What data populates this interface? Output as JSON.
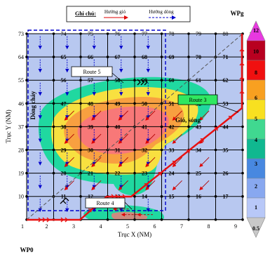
{
  "legend": {
    "title": "Ghi chú:",
    "wind_label": "Hướng gió",
    "current_label": "Hướng dòng",
    "colors": {
      "wind_arrow": "#e00000",
      "current_arrow": "#0000cc"
    }
  },
  "labels": {
    "wp_start": "WP0",
    "wp_goal": "WPg",
    "region_current": "Dòng chảy",
    "region_wind_wave": "Gió, sóng",
    "route3": "Route 3",
    "route4": "Route 4",
    "route5": "Route 5"
  },
  "axes": {
    "xlabel": "Trục X (NM)",
    "ylabel": "Trục Y (NM)",
    "x_ticks": [
      "1",
      "2",
      "3",
      "4",
      "5",
      "6",
      "7",
      "8",
      "9"
    ],
    "y_ticks": [
      "1",
      "10",
      "19",
      "28",
      "37",
      "46",
      "55",
      "64",
      "73"
    ]
  },
  "grid": {
    "nodes": [
      [
        "73",
        "74",
        "75",
        "76",
        "77",
        "78",
        "79",
        "80",
        "81"
      ],
      [
        "64",
        "65",
        "66",
        "67",
        "68",
        "69",
        "70",
        "71",
        "72"
      ],
      [
        "55",
        "56",
        "57",
        "58",
        "59",
        "60",
        "61",
        "62",
        "63"
      ],
      [
        "46",
        "47",
        "48",
        "49",
        "50",
        "51",
        "52",
        "53",
        "54"
      ],
      [
        "37",
        "38",
        "39",
        "40",
        "41",
        "42",
        "43",
        "44",
        "45"
      ],
      [
        "28",
        "29",
        "30",
        "31",
        "32",
        "33",
        "34",
        "35",
        "36"
      ],
      [
        "19",
        "20",
        "21",
        "22",
        "23",
        "24",
        "25",
        "26",
        "27"
      ],
      [
        "10",
        "11",
        "12",
        "13",
        "14",
        "15",
        "16",
        "17",
        "18"
      ],
      [
        "1",
        "2",
        "3",
        "4",
        "5",
        "6",
        "7",
        "8",
        "9"
      ]
    ]
  },
  "colorbar": {
    "values": [
      "12",
      "10",
      "8",
      "6",
      "5",
      "4",
      "3",
      "2",
      "1",
      "0.5"
    ],
    "colors": [
      "#e838e0",
      "#b80020",
      "#f01010",
      "#f8a020",
      "#f8e020",
      "#40d890",
      "#10b890",
      "#4888e0",
      "#88a8f0",
      "#b8c8f8",
      "#c8c8c8"
    ]
  },
  "colors": {
    "background": "#b8c8f0",
    "route_red": "#e81010",
    "route_black": "#000000",
    "contour_teal": "#20d8a0",
    "contour_yellow": "#f8e040",
    "contour_orange": "#f8a040",
    "contour_pink": "#f87878"
  }
}
